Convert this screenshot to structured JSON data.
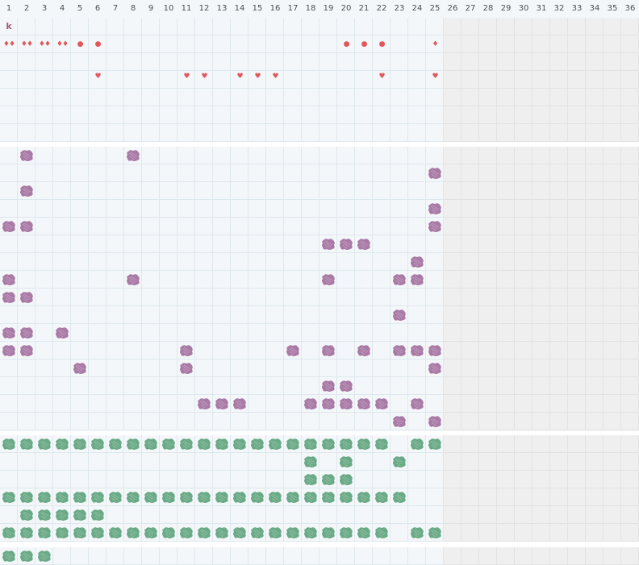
{
  "columns": [
    "1",
    "2",
    "3",
    "4",
    "5",
    "6",
    "7",
    "8",
    "9",
    "10",
    "11",
    "12",
    "13",
    "14",
    "15",
    "16",
    "17",
    "18",
    "19",
    "20",
    "21",
    "22",
    "23",
    "24",
    "25",
    "26",
    "27",
    "28",
    "29",
    "30",
    "31",
    "32",
    "33",
    "34",
    "35",
    "36"
  ],
  "current_column": 25,
  "corner_label": "k",
  "colors": {
    "purple": "#a97aa6",
    "green": "#6aaa86",
    "mark": "#e0585c",
    "future_bg": "#efefef",
    "grid_line": "#dde8ee"
  },
  "marks_row_1": [
    {
      "col": 1,
      "symbol": "♦♦"
    },
    {
      "col": 2,
      "symbol": "♦♦"
    },
    {
      "col": 3,
      "symbol": "♦♦"
    },
    {
      "col": 4,
      "symbol": "♦♦"
    },
    {
      "col": 5,
      "symbol": "●"
    },
    {
      "col": 6,
      "symbol": "●"
    },
    {
      "col": 20,
      "symbol": "●"
    },
    {
      "col": 21,
      "symbol": "●"
    },
    {
      "col": 22,
      "symbol": "●"
    },
    {
      "col": 25,
      "symbol": "♦"
    }
  ],
  "marks_row_3": [
    {
      "col": 6,
      "symbol": "♥"
    },
    {
      "col": 11,
      "symbol": "♥"
    },
    {
      "col": 12,
      "symbol": "♥"
    },
    {
      "col": 14,
      "symbol": "♥"
    },
    {
      "col": 15,
      "symbol": "♥"
    },
    {
      "col": 16,
      "symbol": "♥"
    },
    {
      "col": 22,
      "symbol": "♥"
    },
    {
      "col": 25,
      "symbol": "♥"
    }
  ],
  "purple_rows": [
    [
      2,
      8
    ],
    [
      25
    ],
    [
      2
    ],
    [
      25
    ],
    [
      1,
      2,
      25
    ],
    [
      19,
      20,
      21
    ],
    [
      24
    ],
    [
      1,
      8,
      19,
      23,
      24
    ],
    [
      1,
      2
    ],
    [
      23
    ],
    [
      1,
      2,
      4
    ],
    [
      1,
      2,
      11,
      17,
      19,
      21,
      23,
      24,
      25
    ],
    [
      5,
      11,
      25
    ],
    [
      19,
      20
    ],
    [
      12,
      13,
      14,
      18,
      19,
      20,
      21,
      22,
      24
    ],
    [
      23,
      25
    ]
  ],
  "green_rows": [
    [
      1,
      2,
      3,
      4,
      5,
      6,
      7,
      8,
      9,
      10,
      11,
      12,
      13,
      14,
      15,
      16,
      17,
      18,
      19,
      20,
      21,
      22,
      24,
      25
    ],
    [
      18,
      20,
      23
    ],
    [
      18,
      19,
      20
    ],
    [
      1,
      2,
      3,
      4,
      5,
      6,
      7,
      8,
      9,
      10,
      11,
      12,
      13,
      14,
      15,
      16,
      17,
      18,
      19,
      20,
      21,
      22,
      23
    ],
    [
      2,
      3,
      4,
      5,
      6
    ],
    [
      1,
      2,
      3,
      4,
      5,
      6,
      7,
      8,
      9,
      10,
      11,
      12,
      13,
      14,
      15,
      16,
      17,
      18,
      19,
      20,
      21,
      22,
      24,
      25
    ]
  ],
  "green_rows_bottom": [
    [
      1,
      2,
      3
    ]
  ]
}
